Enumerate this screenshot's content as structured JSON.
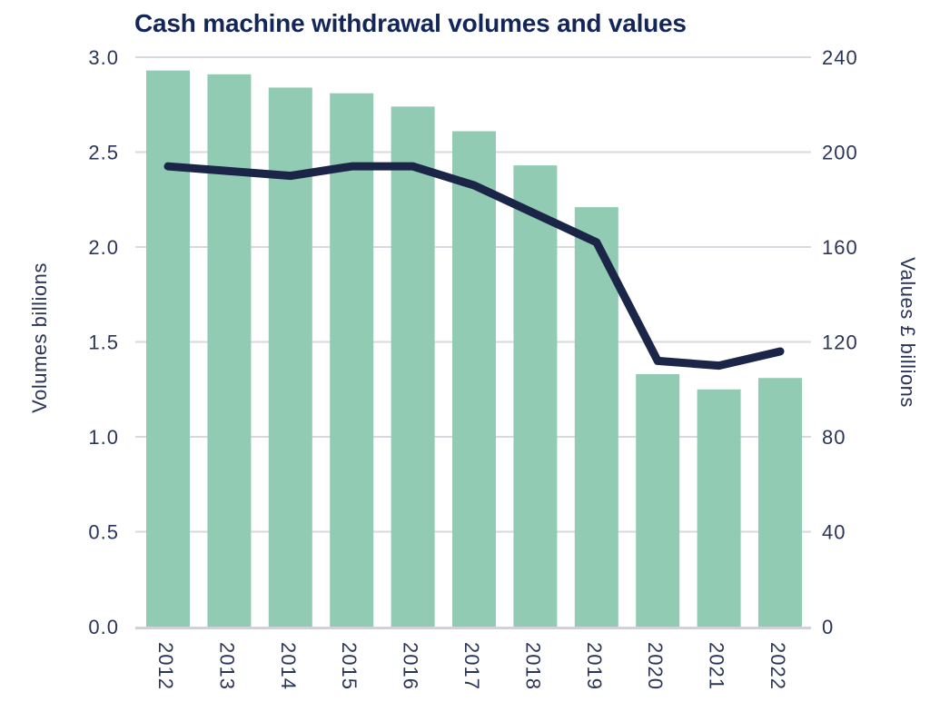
{
  "page": {
    "title": "Cash machine withdrawal volumes and values"
  },
  "colors": {
    "title": "#13265A",
    "text": "#2B3557",
    "bar": "#92CBB4",
    "line": "#1B2548",
    "gridline": "#D9D8DE",
    "axis_line": "#D2D1D7",
    "background": "#FFFFFF"
  },
  "chart_data": {
    "type": "combo-bar-line",
    "title": "Cash machine withdrawal volumes and values",
    "categories": [
      "2012",
      "2013",
      "2014",
      "2015",
      "2016",
      "2017",
      "2018",
      "2019",
      "2020",
      "2021",
      "2022"
    ],
    "series": [
      {
        "name": "Volumes billions",
        "chart_type": "bar",
        "axis": "left",
        "values": [
          2.93,
          2.91,
          2.84,
          2.81,
          2.74,
          2.61,
          2.43,
          2.21,
          1.33,
          1.25,
          1.31
        ]
      },
      {
        "name": "Values £ billions",
        "chart_type": "line",
        "axis": "right",
        "values": [
          194,
          192,
          190,
          194,
          194,
          186,
          174,
          162,
          112,
          110,
          116
        ]
      }
    ],
    "left_axis": {
      "label": "Volumes billions",
      "min": 0,
      "max": 3,
      "ticks": [
        "3.0",
        "2.5",
        "2.0",
        "1.5",
        "1.0",
        "0.5",
        "0.0"
      ]
    },
    "right_axis": {
      "label": "Values £ billions",
      "min": 0,
      "max": 240,
      "ticks": [
        "240",
        "200",
        "160",
        "120",
        "80",
        "40",
        "0"
      ]
    },
    "x_axis": {
      "tick_rotation_deg": 90
    },
    "grid": "horizontal gridlines at every 0.5 (left axis) / 40 (right axis), light gray, behind bars",
    "legend": "none"
  }
}
